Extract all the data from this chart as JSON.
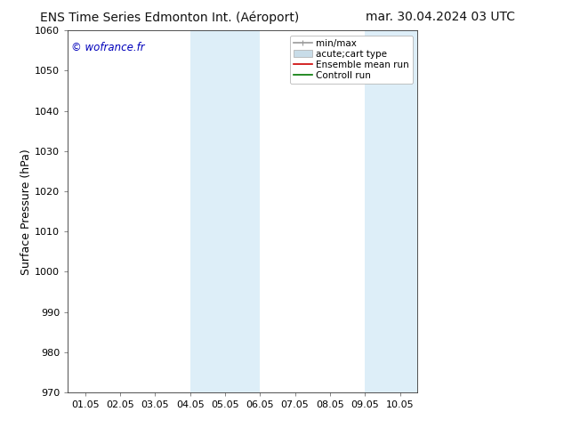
{
  "title_left": "ENS Time Series Edmonton Int. (Aéroport)",
  "title_right": "mar. 30.04.2024 03 UTC",
  "ylabel": "Surface Pressure (hPa)",
  "ylim": [
    970,
    1060
  ],
  "yticks": [
    970,
    980,
    990,
    1000,
    1010,
    1020,
    1030,
    1040,
    1050,
    1060
  ],
  "xtick_labels": [
    "01.05",
    "02.05",
    "03.05",
    "04.05",
    "05.05",
    "06.05",
    "07.05",
    "08.05",
    "09.05",
    "10.05"
  ],
  "xtick_positions": [
    0,
    1,
    2,
    3,
    4,
    5,
    6,
    7,
    8,
    9
  ],
  "xlim": [
    -0.5,
    9.5
  ],
  "shaded_regions": [
    {
      "xmin": 3.0,
      "xmax": 5.0,
      "color": "#ddeef8"
    },
    {
      "xmin": 8.0,
      "xmax": 9.5,
      "color": "#ddeef8"
    }
  ],
  "watermark_text": "© wofrance.fr",
  "watermark_color": "#0000bb",
  "background_color": "#ffffff",
  "legend_entries": [
    {
      "label": "min/max",
      "color": "#999999",
      "linewidth": 1.2,
      "type": "minmax"
    },
    {
      "label": "acute;cart type",
      "color": "#c8dce8",
      "linewidth": 7,
      "type": "band"
    },
    {
      "label": "Ensemble mean run",
      "color": "#cc0000",
      "linewidth": 1.2,
      "type": "line"
    },
    {
      "label": "Controll run",
      "color": "#007700",
      "linewidth": 1.2,
      "type": "line"
    }
  ],
  "title_fontsize": 10,
  "tick_labelsize": 8,
  "ylabel_fontsize": 9,
  "legend_fontsize": 7.5
}
